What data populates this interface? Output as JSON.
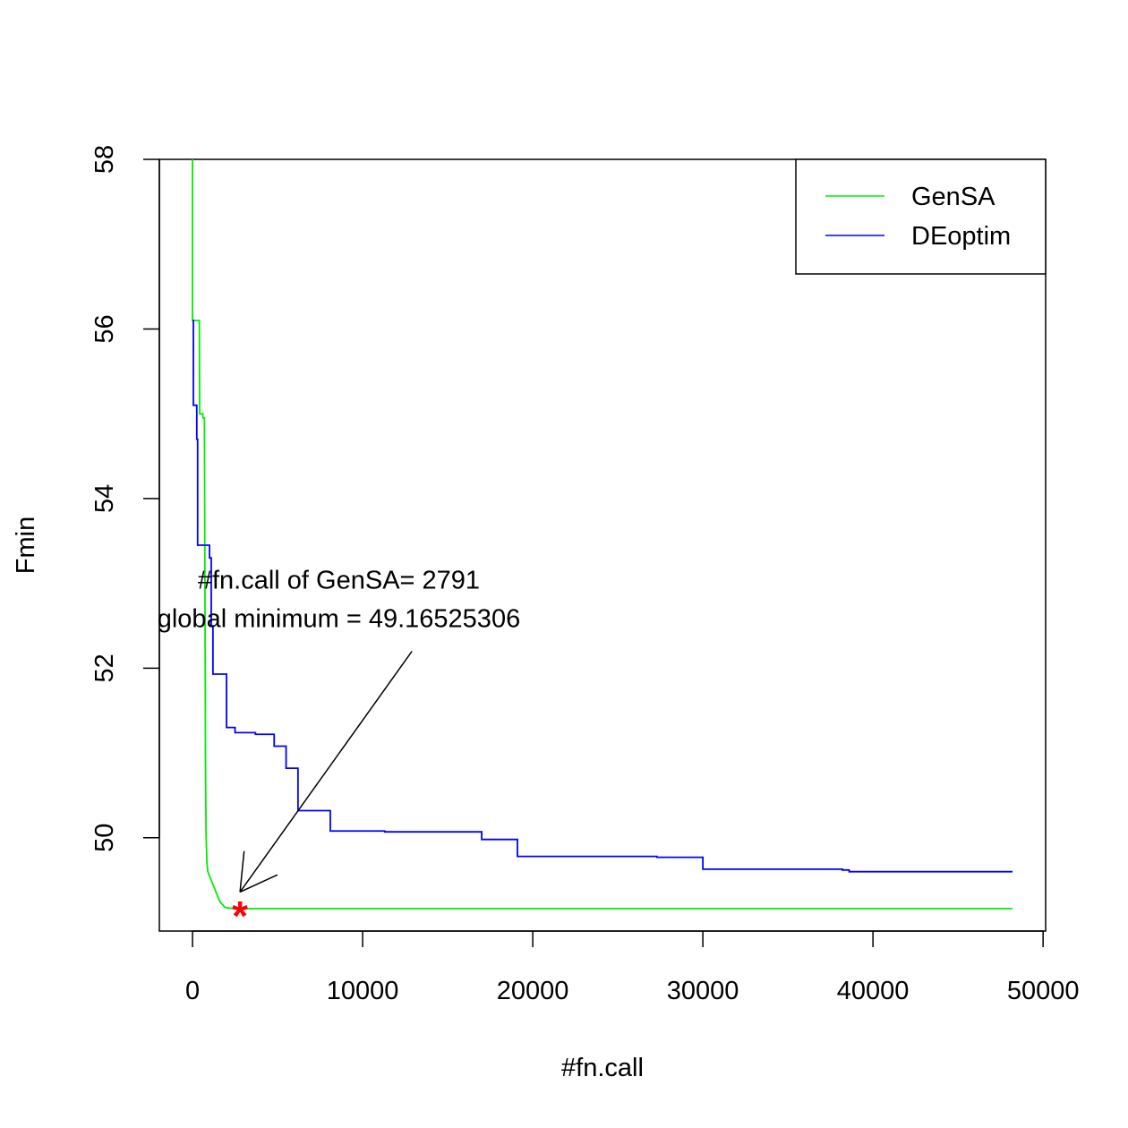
{
  "chart_data": {
    "type": "line",
    "title": "",
    "xlabel": "#fn.call",
    "ylabel": "Fmin",
    "xlim": [
      -1950,
      50150
    ],
    "ylim": [
      48.9,
      58.0
    ],
    "x_ticks": [
      0,
      10000,
      20000,
      30000,
      40000,
      50000
    ],
    "x_tick_labels": [
      "0",
      "10000",
      "20000",
      "30000",
      "40000",
      "50000"
    ],
    "y_ticks": [
      50,
      52,
      54,
      56,
      58
    ],
    "y_tick_labels": [
      "50",
      "52",
      "54",
      "56",
      "58"
    ],
    "grid": false,
    "legend": {
      "position": "top-right",
      "entries": [
        "GenSA",
        "DEoptim"
      ]
    },
    "series": [
      {
        "name": "GenSA",
        "color": "#00ee00",
        "step": false,
        "x": [
          0,
          0,
          20,
          150,
          150,
          400,
          420,
          600,
          620,
          700,
          720,
          730,
          750,
          760,
          780,
          800,
          850,
          900,
          1000,
          1200,
          1400,
          1600,
          1900,
          2200,
          2791,
          10000,
          30000,
          48200
        ],
        "y": [
          58.0,
          56.1,
          56.1,
          56.1,
          56.1,
          56.1,
          55.0,
          55.0,
          54.95,
          54.95,
          53.5,
          53.0,
          51.8,
          51.0,
          50.4,
          50.0,
          49.7,
          49.6,
          49.55,
          49.45,
          49.35,
          49.25,
          49.18,
          49.17,
          49.165,
          49.165,
          49.165,
          49.165
        ]
      },
      {
        "name": "DEoptim",
        "color": "#0000ff",
        "step": true,
        "x": [
          0,
          50,
          250,
          300,
          1000,
          1100,
          1200,
          1900,
          2000,
          2500,
          3700,
          4800,
          5500,
          6200,
          8100,
          11300,
          17000,
          19100,
          23000,
          27300,
          30000,
          38200,
          38600,
          48200
        ],
        "y": [
          56.1,
          55.1,
          54.7,
          53.45,
          53.3,
          52.5,
          51.93,
          51.93,
          51.3,
          51.24,
          51.22,
          51.08,
          50.82,
          50.32,
          50.08,
          50.07,
          49.98,
          49.78,
          49.78,
          49.77,
          49.63,
          49.62,
          49.6,
          49.6
        ]
      }
    ],
    "minimum_point": {
      "x": 2791,
      "y": 49.165,
      "marker": "*",
      "color": "#ff0000"
    },
    "annotation": {
      "lines": [
        "#fn.call of GenSA= 2791",
        "global minimum = 49.16525306"
      ],
      "anchor": {
        "x": 8600,
        "y": 52.6
      },
      "arrow_from": {
        "x": 12900,
        "y": 52.2
      },
      "arrow_to": {
        "x": 2791,
        "y": 49.36
      }
    }
  }
}
